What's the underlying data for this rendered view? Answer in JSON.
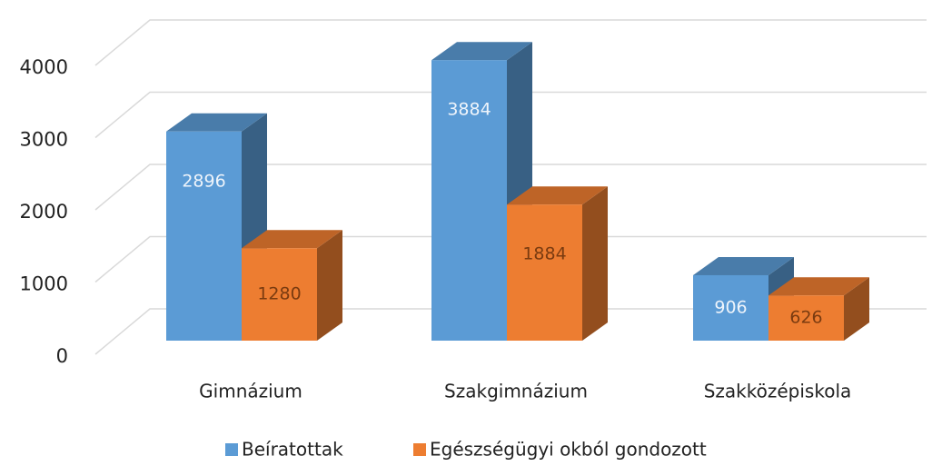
{
  "chart_data": {
    "type": "bar3d",
    "categories": [
      "Gimnázium",
      "Szakgimnázium",
      "Szakközépiskola"
    ],
    "series": [
      {
        "name": "Beíratottak",
        "color": "#5b9bd5",
        "values": [
          2896,
          3884,
          906
        ]
      },
      {
        "name": "Egészségügyi okból gondozott",
        "color": "#ed7d31",
        "values": [
          1280,
          1884,
          626
        ]
      }
    ],
    "ylim": [
      0,
      4000
    ],
    "yticks": [
      0,
      1000,
      2000,
      3000,
      4000
    ],
    "grid": true,
    "legend": "bottom"
  }
}
